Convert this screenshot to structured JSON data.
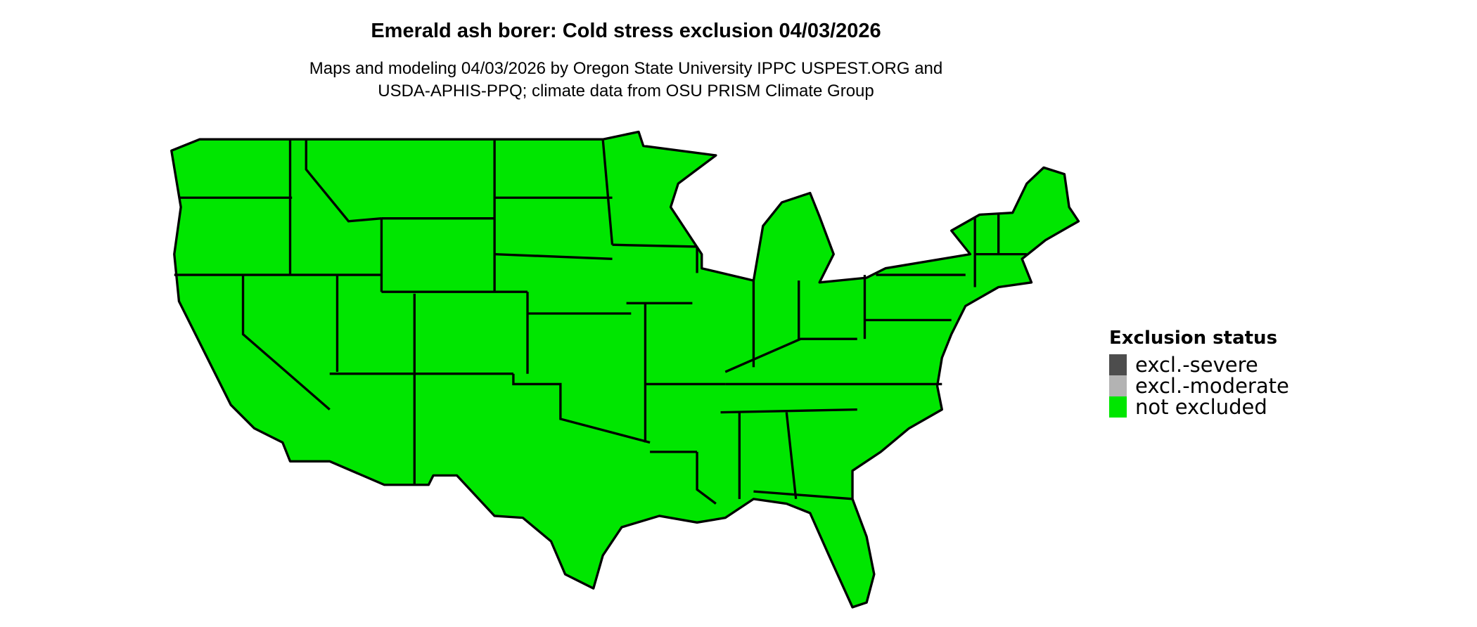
{
  "title": "Emerald ash borer: Cold stress exclusion 04/03/2026",
  "subtitle": [
    "Maps and modeling 04/03/2026 by Oregon State University IPPC USPEST.ORG and",
    "USDA-APHIS-PPQ; climate data from OSU PRISM Climate Group"
  ],
  "map": {
    "region": "Contiguous United States",
    "displayed_status": "not excluded",
    "fill_color": "#00e600",
    "border_color": "#000000"
  },
  "legend": {
    "title": "Exclusion status",
    "items": [
      {
        "label": "excl.-severe",
        "color": "#4d4d4d"
      },
      {
        "label": "excl.-moderate",
        "color": "#b3b3b3"
      },
      {
        "label": "not excluded",
        "color": "#00e600"
      }
    ]
  }
}
